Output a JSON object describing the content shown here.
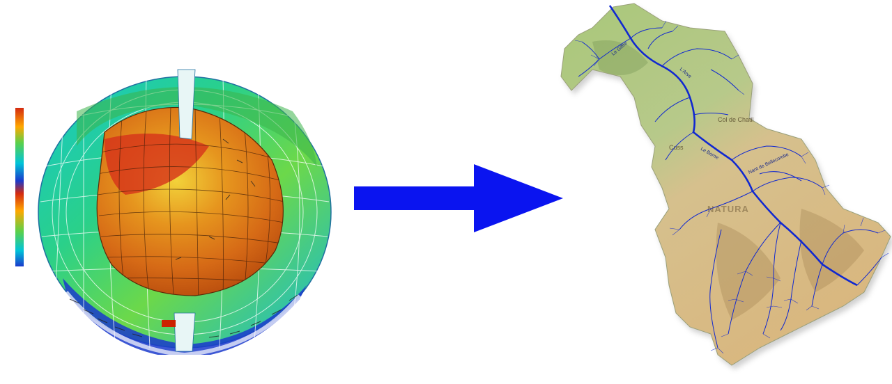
{
  "globe": {
    "icon": "spherical-grid-model",
    "colorbar_colors": [
      "#cc2200",
      "#ff7a00",
      "#ffd400",
      "#3cb44b",
      "#00c2d4",
      "#1a3acc"
    ]
  },
  "arrow": {
    "color": "#0a14f0"
  },
  "map": {
    "icon": "river-basin-map",
    "region_title": "NATURA",
    "place_labels": [
      "Col de Chatil",
      "Cuss"
    ],
    "river_labels": [
      "L'Arve",
      "Le Giffre",
      "Le Borne",
      "Nant de Bellecombe"
    ],
    "colors": {
      "terrain_green": "#a9c77a",
      "terrain_tan": "#d9b77f",
      "river_blue": "#1028d0"
    }
  }
}
